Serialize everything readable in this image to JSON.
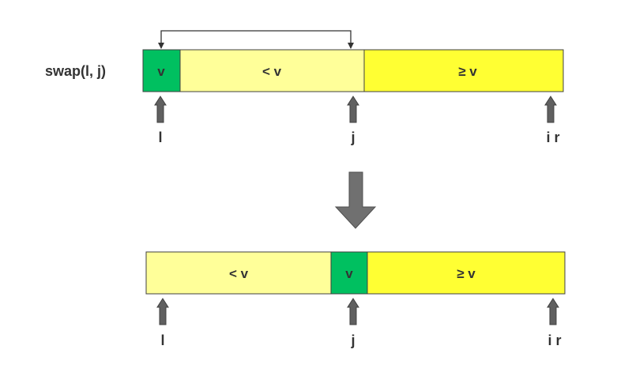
{
  "operation": {
    "label": "swap(l, j)"
  },
  "colors": {
    "pivot": "#00c060",
    "less": "#ffff99",
    "greater_equal": "#ffff33",
    "border": "#404040",
    "pointer": "#606060",
    "swap_line": "#333333"
  },
  "before": {
    "segments": [
      {
        "label": "v",
        "role": "pivot"
      },
      {
        "label": "< v",
        "role": "less"
      },
      {
        "label": "≥ v",
        "role": "greater_equal"
      }
    ],
    "pointers": [
      "l",
      "j",
      "i r"
    ]
  },
  "transition_arrow_icon": "down-arrow-icon",
  "after": {
    "segments": [
      {
        "label": "< v",
        "role": "less"
      },
      {
        "label": "v",
        "role": "pivot"
      },
      {
        "label": "≥ v",
        "role": "greater_equal"
      }
    ],
    "pointers": [
      "l",
      "j",
      "i r"
    ]
  }
}
